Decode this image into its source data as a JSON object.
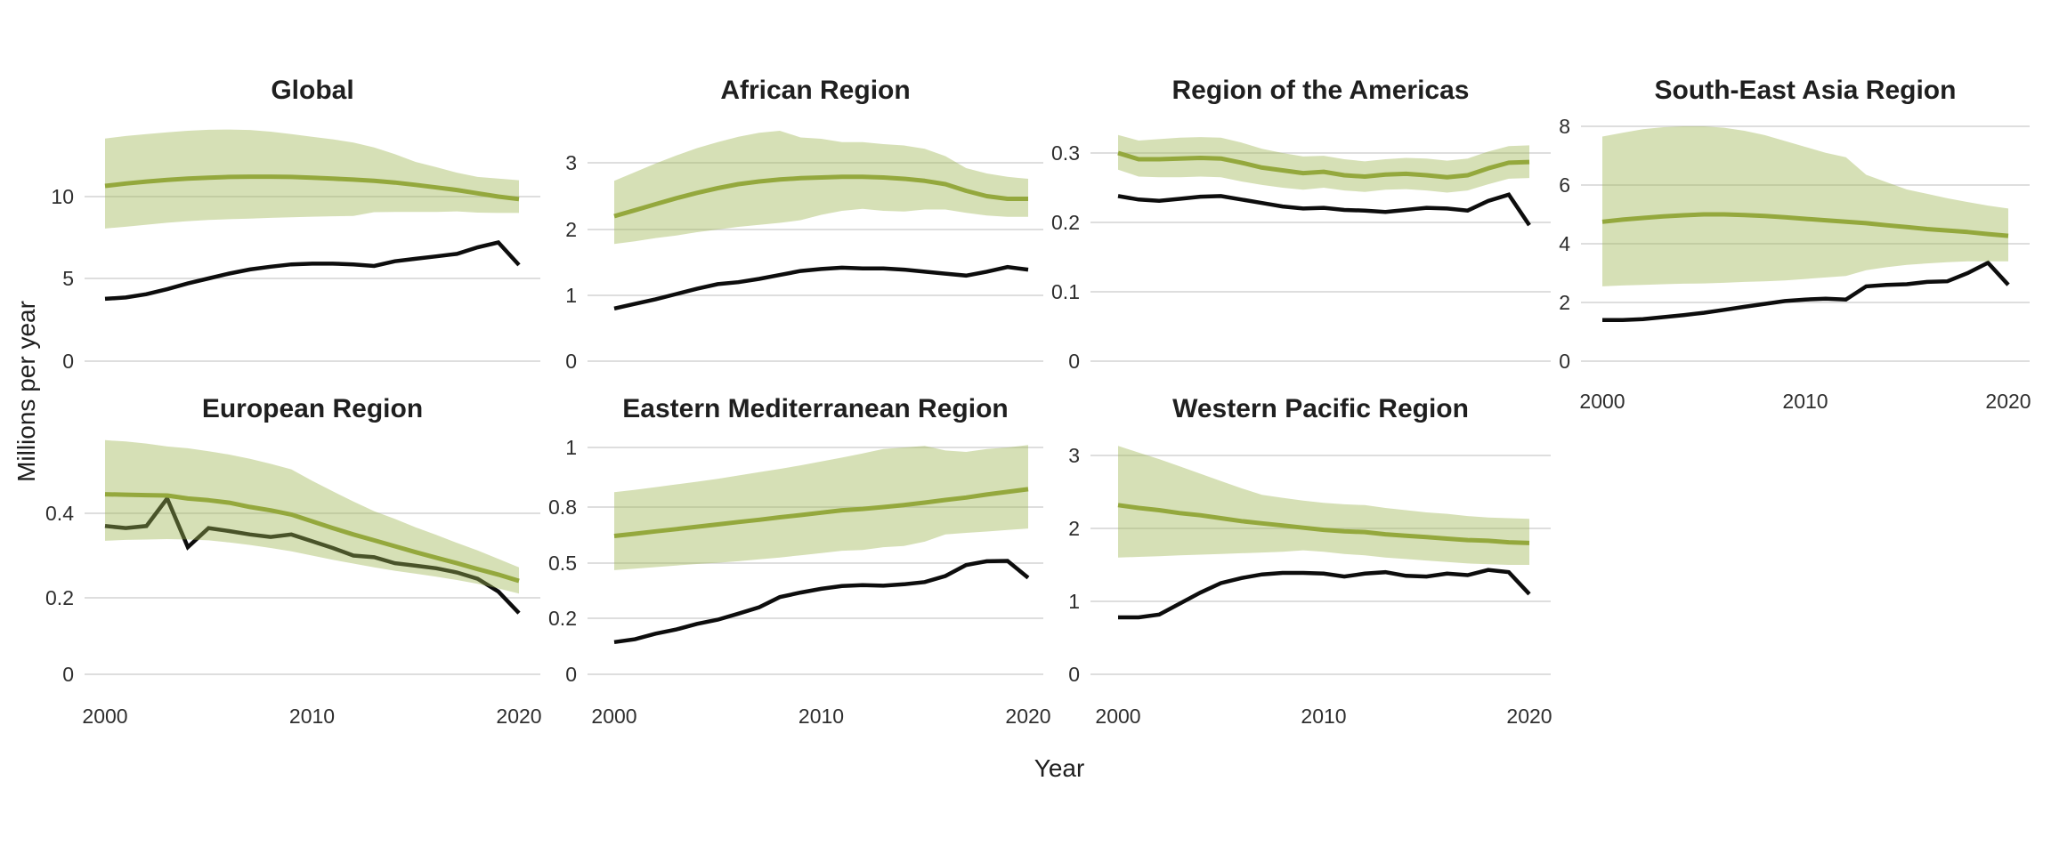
{
  "figure": {
    "y_axis_title": "Millions per year",
    "x_axis_title": "Year"
  },
  "colors": {
    "estimate_line": "#94a83d",
    "estimate_band_fill": "rgba(158,180,80,0.42)",
    "reported_line": "#0d0d0d",
    "gridline": "#d4d4d4",
    "title_text": "#1f1f1f",
    "tick_text": "#2e2e2e"
  },
  "chart_data": [
    {
      "type": "line",
      "title": "Global",
      "x": [
        2000,
        2001,
        2002,
        2003,
        2004,
        2005,
        2006,
        2007,
        2008,
        2009,
        2010,
        2011,
        2012,
        2013,
        2014,
        2015,
        2016,
        2017,
        2018,
        2019,
        2020
      ],
      "xticks": [
        2000,
        2010,
        2020
      ],
      "show_x_tick_labels": false,
      "yticks": [
        0,
        5,
        10
      ],
      "ylim": [
        0,
        14.8
      ],
      "grid": "horizontal",
      "legend": "none",
      "series": [
        {
          "name": "green-estimate-line",
          "values": [
            10.65,
            10.8,
            10.92,
            11.02,
            11.1,
            11.16,
            11.2,
            11.22,
            11.22,
            11.2,
            11.16,
            11.1,
            11.04,
            10.96,
            10.86,
            10.72,
            10.56,
            10.4,
            10.2,
            10.0,
            9.85
          ]
        },
        {
          "name": "black-reported-line",
          "values": [
            3.77,
            3.85,
            4.05,
            4.35,
            4.7,
            5.0,
            5.3,
            5.55,
            5.72,
            5.86,
            5.9,
            5.9,
            5.86,
            5.76,
            6.05,
            6.2,
            6.35,
            6.5,
            6.9,
            7.2,
            5.82
          ]
        }
      ],
      "band": {
        "name": "uncertainty-band",
        "upper": [
          13.55,
          13.7,
          13.82,
          13.93,
          14.02,
          14.08,
          14.1,
          14.07,
          13.97,
          13.82,
          13.66,
          13.5,
          13.3,
          13.0,
          12.6,
          12.12,
          11.8,
          11.46,
          11.2,
          11.1,
          11.0
        ],
        "lower": [
          8.05,
          8.16,
          8.28,
          8.4,
          8.5,
          8.57,
          8.62,
          8.66,
          8.7,
          8.74,
          8.77,
          8.8,
          8.82,
          9.05,
          9.06,
          9.06,
          9.06,
          9.1,
          9.02,
          9.0,
          9.0
        ]
      }
    },
    {
      "type": "line",
      "title": "African Region",
      "x": [
        2000,
        2001,
        2002,
        2003,
        2004,
        2005,
        2006,
        2007,
        2008,
        2009,
        2010,
        2011,
        2012,
        2013,
        2014,
        2015,
        2016,
        2017,
        2018,
        2019,
        2020
      ],
      "xticks": [
        2000,
        2010,
        2020
      ],
      "show_x_tick_labels": false,
      "yticks": [
        0,
        1,
        2,
        3
      ],
      "ylim": [
        0,
        3.6
      ],
      "grid": "horizontal",
      "legend": "none",
      "series": [
        {
          "name": "green-estimate-line",
          "values": [
            2.2,
            2.29,
            2.38,
            2.47,
            2.55,
            2.62,
            2.68,
            2.72,
            2.75,
            2.77,
            2.78,
            2.79,
            2.79,
            2.78,
            2.76,
            2.73,
            2.68,
            2.58,
            2.5,
            2.46,
            2.46
          ]
        },
        {
          "name": "black-reported-line",
          "values": [
            0.8,
            0.87,
            0.94,
            1.02,
            1.1,
            1.17,
            1.2,
            1.25,
            1.31,
            1.37,
            1.4,
            1.42,
            1.41,
            1.41,
            1.39,
            1.36,
            1.33,
            1.3,
            1.36,
            1.43,
            1.39
          ]
        }
      ],
      "band": {
        "name": "uncertainty-band",
        "upper": [
          2.73,
          2.86,
          2.99,
          3.11,
          3.22,
          3.31,
          3.39,
          3.45,
          3.48,
          3.38,
          3.36,
          3.31,
          3.31,
          3.28,
          3.26,
          3.21,
          3.1,
          2.92,
          2.84,
          2.79,
          2.76
        ],
        "lower": [
          1.78,
          1.82,
          1.87,
          1.91,
          1.96,
          2.0,
          2.04,
          2.07,
          2.1,
          2.14,
          2.22,
          2.28,
          2.31,
          2.28,
          2.27,
          2.3,
          2.3,
          2.25,
          2.21,
          2.19,
          2.19
        ]
      }
    },
    {
      "type": "line",
      "title": "Region of the Americas",
      "x": [
        2000,
        2001,
        2002,
        2003,
        2004,
        2005,
        2006,
        2007,
        2008,
        2009,
        2010,
        2011,
        2012,
        2013,
        2014,
        2015,
        2016,
        2017,
        2018,
        2019,
        2020
      ],
      "xticks": [
        2000,
        2010,
        2020
      ],
      "show_x_tick_labels": false,
      "yticks": [
        0,
        0.1,
        0.2,
        0.3
      ],
      "ylim": [
        0,
        0.35
      ],
      "grid": "horizontal",
      "legend": "none",
      "series": [
        {
          "name": "green-estimate-line",
          "values": [
            0.3,
            0.291,
            0.291,
            0.292,
            0.293,
            0.292,
            0.286,
            0.279,
            0.275,
            0.271,
            0.273,
            0.268,
            0.266,
            0.269,
            0.27,
            0.268,
            0.265,
            0.268,
            0.278,
            0.286,
            0.287
          ]
        },
        {
          "name": "black-reported-line",
          "values": [
            0.238,
            0.233,
            0.231,
            0.234,
            0.237,
            0.238,
            0.233,
            0.228,
            0.223,
            0.22,
            0.221,
            0.218,
            0.217,
            0.215,
            0.218,
            0.221,
            0.22,
            0.217,
            0.231,
            0.24,
            0.196
          ]
        }
      ],
      "band": {
        "name": "uncertainty-band",
        "upper": [
          0.326,
          0.318,
          0.32,
          0.322,
          0.323,
          0.322,
          0.315,
          0.306,
          0.3,
          0.295,
          0.296,
          0.291,
          0.288,
          0.291,
          0.293,
          0.292,
          0.289,
          0.292,
          0.302,
          0.31,
          0.311
        ],
        "lower": [
          0.276,
          0.266,
          0.265,
          0.265,
          0.266,
          0.265,
          0.259,
          0.254,
          0.25,
          0.247,
          0.25,
          0.246,
          0.244,
          0.247,
          0.248,
          0.246,
          0.243,
          0.246,
          0.255,
          0.263,
          0.264
        ]
      }
    },
    {
      "type": "line",
      "title": "South-East Asia Region",
      "x": [
        2000,
        2001,
        2002,
        2003,
        2004,
        2005,
        2006,
        2007,
        2008,
        2009,
        2010,
        2011,
        2012,
        2013,
        2014,
        2015,
        2016,
        2017,
        2018,
        2019,
        2020
      ],
      "xticks": [
        2000,
        2010,
        2020
      ],
      "show_x_tick_labels": true,
      "yticks": [
        0,
        2,
        4,
        6,
        8
      ],
      "ylim": [
        0,
        8.2
      ],
      "grid": "horizontal",
      "legend": "none",
      "series": [
        {
          "name": "green-estimate-line",
          "values": [
            4.75,
            4.82,
            4.88,
            4.93,
            4.97,
            5.0,
            5.0,
            4.98,
            4.95,
            4.9,
            4.85,
            4.8,
            4.75,
            4.7,
            4.63,
            4.57,
            4.5,
            4.45,
            4.4,
            4.33,
            4.27
          ]
        },
        {
          "name": "black-reported-line",
          "values": [
            1.4,
            1.4,
            1.43,
            1.5,
            1.57,
            1.65,
            1.75,
            1.85,
            1.95,
            2.05,
            2.1,
            2.13,
            2.1,
            2.55,
            2.6,
            2.62,
            2.7,
            2.72,
            3.0,
            3.35,
            2.6
          ]
        }
      ],
      "band": {
        "name": "uncertainty-band",
        "upper": [
          7.65,
          7.78,
          7.9,
          7.97,
          8.0,
          8.0,
          7.95,
          7.85,
          7.7,
          7.5,
          7.3,
          7.1,
          6.95,
          6.35,
          6.1,
          5.85,
          5.7,
          5.55,
          5.42,
          5.3,
          5.2
        ],
        "lower": [
          2.55,
          2.58,
          2.6,
          2.62,
          2.64,
          2.65,
          2.67,
          2.7,
          2.72,
          2.75,
          2.8,
          2.85,
          2.9,
          3.1,
          3.2,
          3.28,
          3.33,
          3.37,
          3.4,
          3.4,
          3.4
        ]
      }
    },
    {
      "type": "line",
      "title": "European Region",
      "x": [
        2000,
        2001,
        2002,
        2003,
        2004,
        2005,
        2006,
        2007,
        2008,
        2009,
        2010,
        2011,
        2012,
        2013,
        2014,
        2015,
        2016,
        2017,
        2018,
        2019,
        2020
      ],
      "xticks": [
        2000,
        2010,
        2020
      ],
      "show_x_tick_labels": true,
      "yticks": [
        0,
        0.2,
        0.4
      ],
      "ylim": [
        0,
        0.6
      ],
      "grid": "horizontal",
      "legend": "none",
      "series": [
        {
          "name": "green-estimate-line",
          "values": [
            0.445,
            0.444,
            0.443,
            0.442,
            0.435,
            0.431,
            0.425,
            0.415,
            0.407,
            0.397,
            0.381,
            0.365,
            0.35,
            0.336,
            0.322,
            0.308,
            0.295,
            0.282,
            0.268,
            0.255,
            0.24
          ]
        },
        {
          "name": "black-reported-line",
          "values": [
            0.37,
            0.365,
            0.37,
            0.435,
            0.32,
            0.365,
            0.358,
            0.35,
            0.344,
            0.35,
            0.334,
            0.318,
            0.3,
            0.296,
            0.282,
            0.276,
            0.27,
            0.26,
            0.245,
            0.215,
            0.16
          ]
        }
      ],
      "band": {
        "name": "uncertainty-band",
        "upper": [
          0.573,
          0.57,
          0.565,
          0.558,
          0.554,
          0.547,
          0.539,
          0.529,
          0.517,
          0.504,
          0.477,
          0.452,
          0.428,
          0.405,
          0.387,
          0.367,
          0.349,
          0.33,
          0.312,
          0.292,
          0.272
        ],
        "lower": [
          0.335,
          0.337,
          0.338,
          0.339,
          0.338,
          0.336,
          0.331,
          0.325,
          0.318,
          0.31,
          0.3,
          0.29,
          0.281,
          0.272,
          0.264,
          0.257,
          0.25,
          0.242,
          0.233,
          0.222,
          0.21
        ]
      }
    },
    {
      "type": "line",
      "title": "Eastern Mediterranean Region",
      "x": [
        2000,
        2001,
        2002,
        2003,
        2004,
        2005,
        2006,
        2007,
        2008,
        2009,
        2010,
        2011,
        2012,
        2013,
        2014,
        2015,
        2016,
        2017,
        2018,
        2019,
        2020
      ],
      "xticks": [
        2000,
        2010,
        2020
      ],
      "show_x_tick_labels": true,
      "yticks": [
        0,
        0.2,
        0.5,
        0.8,
        1
      ],
      "ylim": [
        0,
        1.05
      ],
      "grid": "horizontal",
      "legend": "none",
      "series": [
        {
          "name": "green-estimate-line",
          "values": [
            0.645,
            0.657,
            0.67,
            0.682,
            0.695,
            0.707,
            0.72,
            0.732,
            0.745,
            0.757,
            0.77,
            0.783,
            0.79,
            0.8,
            0.807,
            0.815,
            0.824,
            0.832,
            0.842,
            0.851,
            0.86
          ]
        },
        {
          "name": "black-reported-line",
          "values": [
            0.115,
            0.125,
            0.145,
            0.16,
            0.18,
            0.195,
            0.225,
            0.26,
            0.315,
            0.34,
            0.36,
            0.375,
            0.38,
            0.377,
            0.385,
            0.397,
            0.43,
            0.49,
            0.51,
            0.512,
            0.42
          ]
        }
      ],
      "band": {
        "name": "uncertainty-band",
        "upper": [
          0.85,
          0.858,
          0.867,
          0.876,
          0.885,
          0.895,
          0.906,
          0.917,
          0.928,
          0.94,
          0.953,
          0.966,
          0.98,
          0.995,
          1.0,
          1.005,
          0.99,
          0.985,
          0.995,
          1.0,
          1.008
        ],
        "lower": [
          0.462,
          0.47,
          0.478,
          0.487,
          0.495,
          0.502,
          0.51,
          0.52,
          0.53,
          0.542,
          0.554,
          0.566,
          0.57,
          0.585,
          0.592,
          0.615,
          0.654,
          0.662,
          0.669,
          0.677,
          0.685
        ]
      }
    },
    {
      "type": "line",
      "title": "Western Pacific Region",
      "x": [
        2000,
        2001,
        2002,
        2003,
        2004,
        2005,
        2006,
        2007,
        2008,
        2009,
        2010,
        2011,
        2012,
        2013,
        2014,
        2015,
        2016,
        2017,
        2018,
        2019,
        2020
      ],
      "xticks": [
        2000,
        2010,
        2020
      ],
      "show_x_tick_labels": true,
      "yticks": [
        0,
        1,
        2,
        3
      ],
      "ylim": [
        0,
        3.2
      ],
      "grid": "horizontal",
      "legend": "none",
      "series": [
        {
          "name": "green-estimate-line",
          "values": [
            2.32,
            2.28,
            2.25,
            2.21,
            2.18,
            2.14,
            2.1,
            2.07,
            2.04,
            2.01,
            1.98,
            1.96,
            1.95,
            1.92,
            1.9,
            1.88,
            1.86,
            1.84,
            1.83,
            1.81,
            1.8
          ]
        },
        {
          "name": "black-reported-line",
          "values": [
            0.78,
            0.78,
            0.82,
            0.97,
            1.12,
            1.25,
            1.32,
            1.37,
            1.39,
            1.39,
            1.38,
            1.34,
            1.38,
            1.4,
            1.35,
            1.34,
            1.38,
            1.36,
            1.43,
            1.4,
            1.1
          ]
        }
      ],
      "band": {
        "name": "uncertainty-band",
        "upper": [
          3.13,
          3.04,
          2.95,
          2.85,
          2.75,
          2.65,
          2.55,
          2.46,
          2.42,
          2.38,
          2.35,
          2.33,
          2.32,
          2.28,
          2.25,
          2.22,
          2.2,
          2.17,
          2.15,
          2.14,
          2.13
        ],
        "lower": [
          1.6,
          1.61,
          1.62,
          1.63,
          1.64,
          1.65,
          1.66,
          1.67,
          1.68,
          1.7,
          1.68,
          1.65,
          1.63,
          1.6,
          1.58,
          1.56,
          1.54,
          1.52,
          1.51,
          1.5,
          1.5
        ]
      }
    }
  ]
}
